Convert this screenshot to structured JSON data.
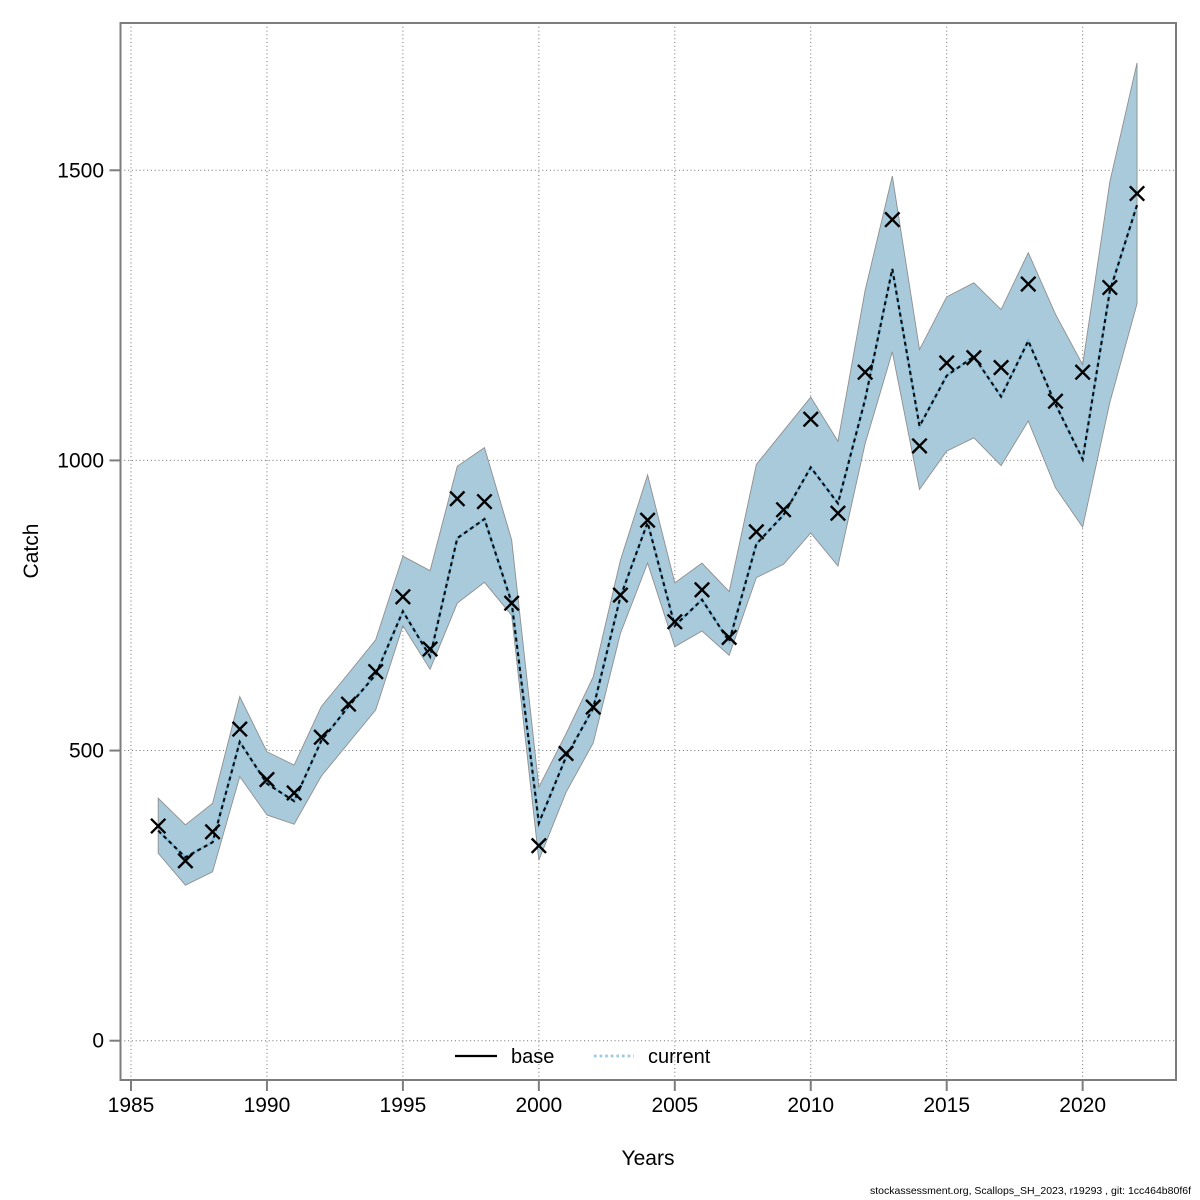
{
  "chart_data": {
    "type": "line",
    "title": "",
    "xlabel": "Years",
    "ylabel": "Catch",
    "x_ticks": [
      1985,
      1990,
      1995,
      2000,
      2005,
      2010,
      2015,
      2020
    ],
    "y_ticks": [
      0,
      500,
      1000,
      1500
    ],
    "xlim": [
      1984.6,
      2023.4
    ],
    "ylim": [
      -68,
      1753
    ],
    "grid": "dotted",
    "band_color": "#a8cadb",
    "band_edge_color": "#8f8f8f",
    "fit_line_underlay_color": "#85bcd9",
    "fit_line_dash_color": "#0b0b0b",
    "marker": "x",
    "marker_color": "#000000",
    "legend": [
      {
        "label": "base",
        "style": "solid",
        "color": "#000000"
      },
      {
        "label": "current",
        "style": "dotted",
        "color": "#9bc8e0"
      }
    ],
    "series": {
      "years": [
        1986,
        1987,
        1988,
        1989,
        1990,
        1991,
        1992,
        1993,
        1994,
        1995,
        1996,
        1997,
        1998,
        1999,
        2000,
        2001,
        2002,
        2003,
        2004,
        2005,
        2006,
        2007,
        2008,
        2009,
        2010,
        2011,
        2012,
        2013,
        2014,
        2015,
        2016,
        2017,
        2018,
        2019,
        2020,
        2021,
        2022
      ],
      "observed": [
        370,
        310,
        360,
        537,
        450,
        427,
        523,
        580,
        636,
        765,
        675,
        934,
        929,
        754,
        336,
        495,
        575,
        768,
        897,
        722,
        777,
        695,
        877,
        915,
        1071,
        909,
        1152,
        1415,
        1025,
        1168,
        1177,
        1160,
        1304,
        1102,
        1152,
        1298,
        1460
      ],
      "current_fit": [
        362,
        316,
        342,
        515,
        443,
        413,
        517,
        576,
        631,
        740,
        662,
        866,
        899,
        755,
        375,
        489,
        573,
        765,
        893,
        715,
        760,
        688,
        856,
        906,
        988,
        926,
        1105,
        1330,
        1059,
        1146,
        1179,
        1110,
        1206,
        1097,
        1002,
        1292,
        1440
      ],
      "band_low": [
        323,
        268,
        291,
        455,
        389,
        373,
        456,
        513,
        570,
        715,
        640,
        754,
        790,
        733,
        311,
        428,
        513,
        702,
        823,
        679,
        706,
        664,
        798,
        821,
        875,
        818,
        1029,
        1187,
        950,
        1016,
        1039,
        991,
        1068,
        953,
        885,
        1100,
        1270
      ],
      "band_high": [
        418,
        372,
        409,
        593,
        498,
        475,
        576,
        633,
        691,
        835,
        810,
        990,
        1022,
        863,
        437,
        529,
        627,
        828,
        975,
        789,
        823,
        774,
        993,
        1051,
        1109,
        1033,
        1293,
        1490,
        1191,
        1282,
        1306,
        1260,
        1358,
        1252,
        1165,
        1480,
        1685
      ]
    }
  },
  "footer": {
    "text": "stockassessment.org, Scallops_SH_2023, r19293 , git: 1cc464b80f6f"
  }
}
